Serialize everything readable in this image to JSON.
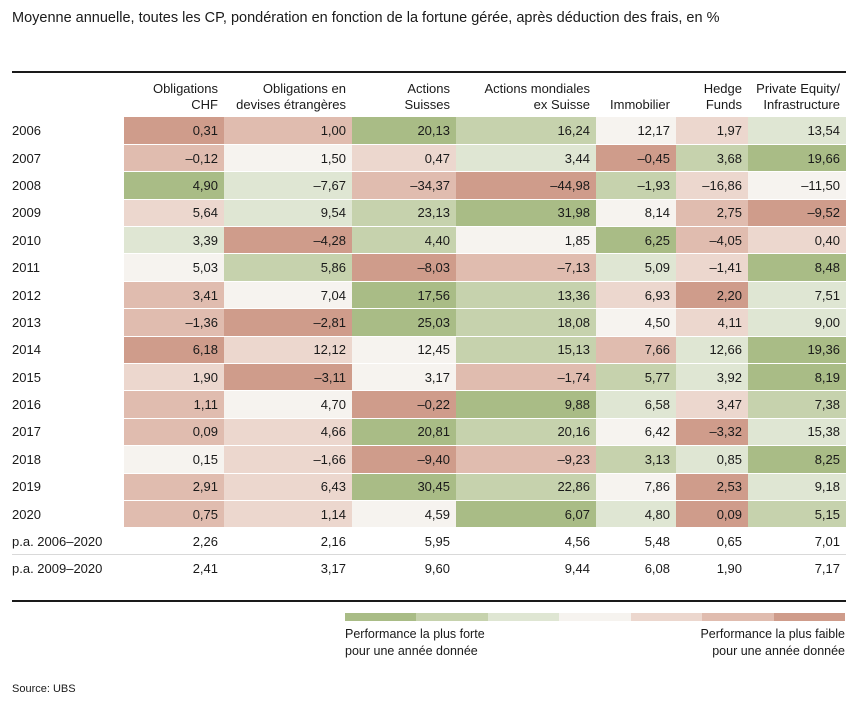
{
  "subtitle": "Moyenne annuelle, toutes les CP, pondération en fonction de la fortune gérée, après déduction des frais, en %",
  "chart_data": {
    "type": "table",
    "columns": [
      {
        "line1": "Obligations",
        "line2": "CHF"
      },
      {
        "line1": "Obligations en",
        "line2": "devises étrangères"
      },
      {
        "line1": "Actions",
        "line2": "Suisses"
      },
      {
        "line1": "Actions mondiales",
        "line2": "ex Suisse"
      },
      {
        "line1": "Immobilier",
        "line2": ""
      },
      {
        "line1": "Hedge",
        "line2": "Funds"
      },
      {
        "line1": "Private Equity/",
        "line2": "Infrastructure"
      }
    ],
    "rows": [
      {
        "label": "2006",
        "values": [
          "0,31",
          "1,00",
          "20,13",
          "16,24",
          "12,17",
          "1,97",
          "13,54"
        ],
        "ranks": [
          7,
          6,
          1,
          2,
          4,
          5,
          3
        ]
      },
      {
        "label": "2007",
        "values": [
          "–0,12",
          "1,50",
          "0,47",
          "3,44",
          "–0,45",
          "3,68",
          "19,66"
        ],
        "ranks": [
          6,
          4,
          5,
          3,
          7,
          2,
          1
        ]
      },
      {
        "label": "2008",
        "values": [
          "4,90",
          "–7,67",
          "–34,37",
          "–44,98",
          "–1,93",
          "–16,86",
          "–11,50"
        ],
        "ranks": [
          1,
          3,
          6,
          7,
          2,
          5,
          4
        ]
      },
      {
        "label": "2009",
        "values": [
          "5,64",
          "9,54",
          "23,13",
          "31,98",
          "8,14",
          "2,75",
          "–9,52"
        ],
        "ranks": [
          5,
          3,
          2,
          1,
          4,
          6,
          7
        ]
      },
      {
        "label": "2010",
        "values": [
          "3,39",
          "–4,28",
          "4,40",
          "1,85",
          "6,25",
          "–4,05",
          "0,40"
        ],
        "ranks": [
          3,
          7,
          2,
          4,
          1,
          6,
          5
        ]
      },
      {
        "label": "2011",
        "values": [
          "5,03",
          "5,86",
          "–8,03",
          "–7,13",
          "5,09",
          "–1,41",
          "8,48"
        ],
        "ranks": [
          4,
          2,
          7,
          6,
          3,
          5,
          1
        ]
      },
      {
        "label": "2012",
        "values": [
          "3,41",
          "7,04",
          "17,56",
          "13,36",
          "6,93",
          "2,20",
          "7,51"
        ],
        "ranks": [
          6,
          4,
          1,
          2,
          5,
          7,
          3
        ]
      },
      {
        "label": "2013",
        "values": [
          "–1,36",
          "–2,81",
          "25,03",
          "18,08",
          "4,50",
          "4,11",
          "9,00"
        ],
        "ranks": [
          6,
          7,
          1,
          2,
          4,
          5,
          3
        ]
      },
      {
        "label": "2014",
        "values": [
          "6,18",
          "12,12",
          "12,45",
          "15,13",
          "7,66",
          "12,66",
          "19,36"
        ],
        "ranks": [
          7,
          5,
          4,
          2,
          6,
          3,
          1
        ]
      },
      {
        "label": "2015",
        "values": [
          "1,90",
          "–3,11",
          "3,17",
          "–1,74",
          "5,77",
          "3,92",
          "8,19"
        ],
        "ranks": [
          5,
          7,
          4,
          6,
          2,
          3,
          1
        ]
      },
      {
        "label": "2016",
        "values": [
          "1,11",
          "4,70",
          "–0,22",
          "9,88",
          "6,58",
          "3,47",
          "7,38"
        ],
        "ranks": [
          6,
          4,
          7,
          1,
          3,
          5,
          2
        ]
      },
      {
        "label": "2017",
        "values": [
          "0,09",
          "4,66",
          "20,81",
          "20,16",
          "6,42",
          "–3,32",
          "15,38"
        ],
        "ranks": [
          6,
          5,
          1,
          2,
          4,
          7,
          3
        ]
      },
      {
        "label": "2018",
        "values": [
          "0,15",
          "–1,66",
          "–9,40",
          "–9,23",
          "3,13",
          "0,85",
          "8,25"
        ],
        "ranks": [
          4,
          5,
          7,
          6,
          2,
          3,
          1
        ]
      },
      {
        "label": "2019",
        "values": [
          "2,91",
          "6,43",
          "30,45",
          "22,86",
          "7,86",
          "2,53",
          "9,18"
        ],
        "ranks": [
          6,
          5,
          1,
          2,
          4,
          7,
          3
        ]
      },
      {
        "label": "2020",
        "values": [
          "0,75",
          "1,14",
          "4,59",
          "6,07",
          "4,80",
          "0,09",
          "5,15"
        ],
        "ranks": [
          6,
          5,
          4,
          1,
          3,
          7,
          2
        ]
      }
    ],
    "averages": [
      {
        "label": "p.a. 2006–2020",
        "values": [
          "2,26",
          "2,16",
          "5,95",
          "4,56",
          "5,48",
          "0,65",
          "7,01"
        ]
      },
      {
        "label": "p.a. 2009–2020",
        "values": [
          "2,41",
          "3,17",
          "9,60",
          "9,44",
          "6,08",
          "1,90",
          "7,17"
        ]
      }
    ]
  },
  "colors": {
    "scale": [
      "#a9bc86",
      "#c6d2ad",
      "#dfe6d3",
      "#f6f3ef",
      "#ecd7ce",
      "#e0bcaf",
      "#cf9c8b"
    ]
  },
  "legend": {
    "left_line1": "Performance la plus forte",
    "left_line2": "pour une année donnée",
    "right_line1": "Performance la plus faible",
    "right_line2": "pour une année donnée"
  },
  "source": "Source: UBS"
}
